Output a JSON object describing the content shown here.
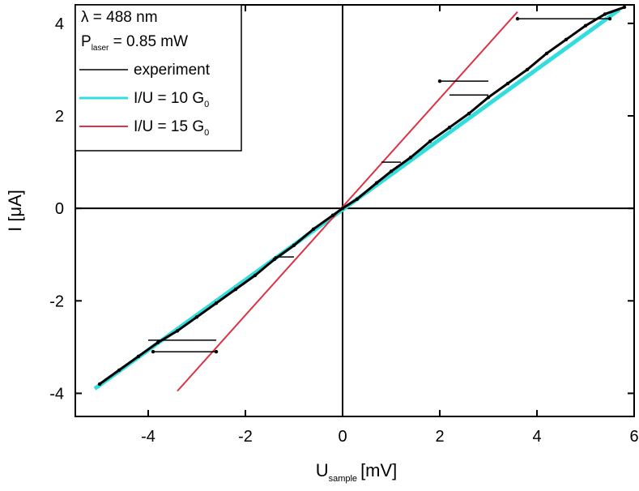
{
  "chart_data": {
    "type": "line",
    "xlabel": "U",
    "xlabel_sub": "sample",
    "xlabel_unit": "[mV]",
    "ylabel": "I [μA]",
    "xlim": [
      -5.5,
      6
    ],
    "ylim": [
      -4.5,
      4.4
    ],
    "xticks": [
      -4,
      -2,
      0,
      2,
      4,
      6
    ],
    "yticks": [
      -4,
      -2,
      0,
      2,
      4
    ],
    "xtick_labels": [
      "-4",
      "-2",
      "0",
      "2",
      "4",
      "6"
    ],
    "ytick_labels": [
      "-4",
      "-2",
      "0",
      "2",
      "4"
    ],
    "grid": false,
    "zero_lines": true,
    "legend_position": "top-left",
    "annotations": [
      {
        "line1_text": "λ = 488 nm"
      },
      {
        "prefix": "P",
        "sub": "laser",
        "suffix": " = 0.85 mW"
      }
    ],
    "series": [
      {
        "name": "experiment",
        "name_text": "experiment",
        "color": "#000000",
        "x": [
          -5.0,
          -4.6,
          -4.2,
          -3.8,
          -3.4,
          -3.0,
          -2.6,
          -3.9,
          -2.6,
          -2.2,
          -1.8,
          -1.4,
          -1.0,
          -0.6,
          -0.2,
          0.0,
          0.3,
          0.7,
          1.0,
          1.4,
          1.8,
          2.2,
          2.6,
          2.0,
          3.0,
          3.4,
          3.8,
          4.2,
          4.6,
          5.0,
          5.4,
          5.8,
          5.5,
          3.6
        ],
        "y": [
          -3.8,
          -3.5,
          -3.2,
          -2.9,
          -2.65,
          -2.35,
          -2.05,
          -3.1,
          -3.1,
          -1.75,
          -1.45,
          -1.1,
          -0.8,
          -0.45,
          -0.15,
          0.0,
          0.2,
          0.55,
          0.8,
          1.1,
          1.45,
          1.75,
          2.05,
          2.75,
          2.4,
          2.7,
          3.0,
          3.35,
          3.65,
          3.95,
          4.2,
          4.35,
          4.1,
          4.1
        ]
      },
      {
        "name": "I/U = 10 G0",
        "name_prefix": "I/U = 10 G",
        "name_sub": "0",
        "color": "#33dddd",
        "x": [
          -5.1,
          5.7
        ],
        "y": [
          -3.9,
          4.3
        ]
      },
      {
        "name": "I/U = 15 G0",
        "name_prefix": "I/U = 15 G",
        "name_sub": "0",
        "color": "#dd3344",
        "x": [
          -3.4,
          3.6
        ],
        "y": [
          -3.95,
          4.25
        ]
      }
    ]
  }
}
